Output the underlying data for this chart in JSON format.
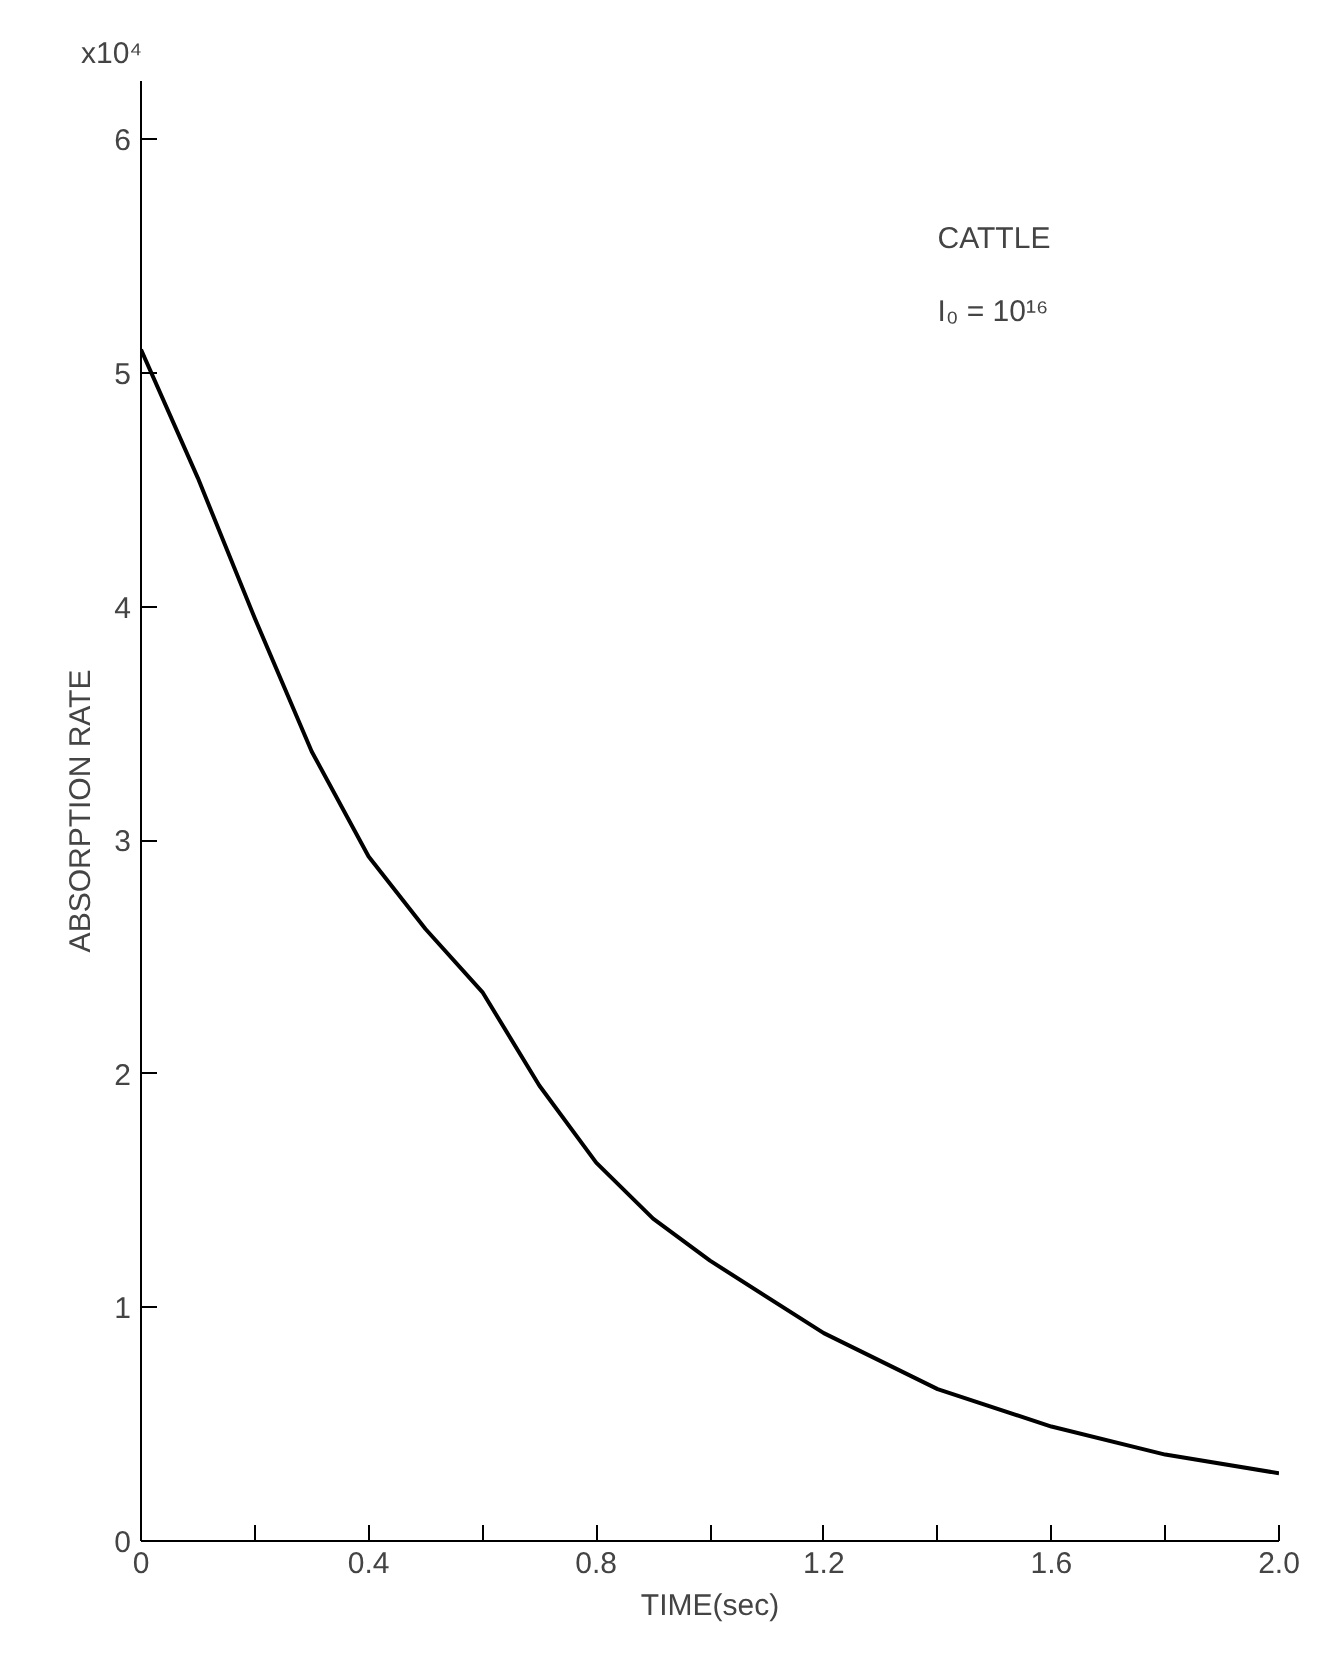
{
  "chart_data": {
    "type": "line",
    "xlabel": "TIME(sec)",
    "ylabel": "ABSORPTION RATE",
    "annotations": [
      "x10⁴",
      "CATTLE",
      "I₀ = 10¹⁶"
    ],
    "x": [
      0,
      0.1,
      0.2,
      0.3,
      0.4,
      0.5,
      0.6,
      0.7,
      0.8,
      0.9,
      1.0,
      1.2,
      1.4,
      1.6,
      1.8,
      2.0
    ],
    "series": [
      {
        "color": "#000000",
        "values": [
          5.1,
          4.55,
          3.95,
          3.38,
          2.93,
          2.62,
          2.35,
          1.95,
          1.62,
          1.38,
          1.2,
          0.89,
          0.65,
          0.49,
          0.37,
          0.29
        ]
      }
    ],
    "xlim": [
      0,
      2.0
    ],
    "ylim": [
      0,
      6.25
    ],
    "xticks": [
      0,
      {
        "value": 0.2,
        "label": null
      },
      0.4,
      {
        "value": 0.6,
        "label": null
      },
      0.8,
      {
        "value": 1.0,
        "label": null
      },
      1.2,
      {
        "value": 1.4,
        "label": null
      },
      1.6,
      {
        "value": 1.8,
        "label": null
      },
      {
        "value": 2.0,
        "label": "2.0"
      }
    ],
    "yticks": [
      0,
      1,
      2,
      3,
      4,
      5,
      6
    ],
    "marker": "none",
    "line_style": "solid"
  }
}
